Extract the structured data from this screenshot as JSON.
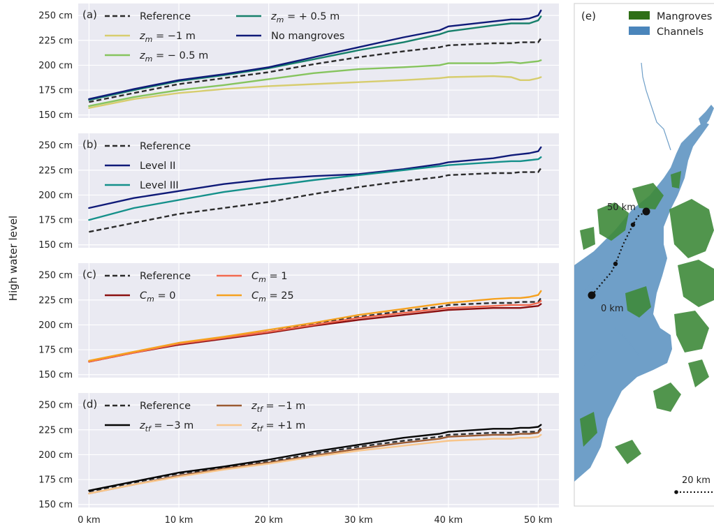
{
  "ylabel": "High water level",
  "x_ticks": [
    "0 km",
    "10 km",
    "20 km",
    "30 km",
    "40 km",
    "50 km"
  ],
  "y_ticks": [
    "150 cm",
    "175 cm",
    "200 cm",
    "225 cm",
    "250 cm"
  ],
  "chart_data": [
    {
      "type": "line",
      "panel": "(a)",
      "x": [
        0,
        5,
        10,
        15,
        20,
        25,
        30,
        35,
        39,
        40,
        45,
        47,
        48,
        49,
        50,
        50.3
      ],
      "xlim": [
        0,
        52
      ],
      "ylim": [
        148,
        260
      ],
      "grid": true,
      "series": [
        {
          "name": "Reference",
          "color": "#2b2b2b",
          "dash": true,
          "values": [
            163,
            172,
            181,
            187,
            193,
            201,
            208,
            214,
            218,
            220,
            222,
            222,
            223,
            223,
            223,
            227
          ]
        },
        {
          "name": "z_m = −1 m",
          "color": "#d7cd6e",
          "values": [
            157,
            166,
            172,
            176,
            179,
            181,
            183,
            185,
            187,
            188,
            189,
            188,
            185,
            185,
            187,
            188
          ]
        },
        {
          "name": "z_m = − 0.5 m",
          "color": "#86c45e",
          "values": [
            159,
            168,
            175,
            180,
            186,
            192,
            196,
            198,
            200,
            202,
            202,
            203,
            202,
            203,
            204,
            205
          ]
        },
        {
          "name": "z_m = + 0.5 m",
          "color": "#17806b",
          "values": [
            165,
            175,
            184,
            190,
            197,
            206,
            215,
            223,
            231,
            234,
            240,
            242,
            242,
            242,
            245,
            249
          ]
        },
        {
          "name": "No mangroves",
          "color": "#0f1a78",
          "values": [
            166,
            176,
            185,
            191,
            198,
            208,
            218,
            228,
            235,
            239,
            244,
            246,
            246,
            247,
            250,
            255
          ]
        }
      ]
    },
    {
      "type": "line",
      "panel": "(b)",
      "x": [
        0,
        5,
        10,
        15,
        20,
        25,
        30,
        35,
        39,
        40,
        45,
        47,
        48,
        49,
        50,
        50.3
      ],
      "xlim": [
        0,
        52
      ],
      "ylim": [
        148,
        260
      ],
      "grid": true,
      "series": [
        {
          "name": "Reference",
          "color": "#2b2b2b",
          "dash": true,
          "values": [
            163,
            172,
            181,
            187,
            193,
            201,
            208,
            214,
            218,
            220,
            222,
            222,
            223,
            223,
            223,
            227
          ]
        },
        {
          "name": "Level II",
          "color": "#0f1a78",
          "values": [
            187,
            197,
            204,
            211,
            216,
            219,
            221,
            226,
            231,
            233,
            237,
            240,
            241,
            242,
            244,
            248
          ]
        },
        {
          "name": "Level III",
          "color": "#14908a",
          "values": [
            175,
            187,
            195,
            203,
            209,
            215,
            220,
            225,
            229,
            230,
            233,
            234,
            234,
            235,
            236,
            238
          ]
        }
      ]
    },
    {
      "type": "line",
      "panel": "(c)",
      "x": [
        0,
        5,
        10,
        15,
        20,
        25,
        30,
        35,
        39,
        40,
        45,
        47,
        48,
        49,
        50,
        50.3
      ],
      "xlim": [
        0,
        52
      ],
      "ylim": [
        148,
        260
      ],
      "grid": true,
      "series": [
        {
          "name": "Reference",
          "color": "#2b2b2b",
          "dash": true,
          "values": [
            163,
            172,
            181,
            187,
            193,
            201,
            208,
            214,
            218,
            220,
            222,
            222,
            223,
            223,
            223,
            227
          ]
        },
        {
          "name": "C_m = 0",
          "color": "#8b1010",
          "values": [
            163,
            172,
            180,
            186,
            192,
            199,
            205,
            210,
            214,
            215,
            217,
            217,
            217,
            218,
            219,
            221
          ]
        },
        {
          "name": "C_m = 1",
          "color": "#f26a4f",
          "values": [
            163,
            172,
            181,
            187,
            193,
            200,
            207,
            212,
            216,
            217,
            219,
            220,
            220,
            220,
            222,
            224
          ]
        },
        {
          "name": "C_m = 25",
          "color": "#f5a11f",
          "values": [
            164,
            173,
            182,
            188,
            195,
            202,
            210,
            216,
            221,
            222,
            226,
            227,
            227,
            228,
            230,
            234
          ]
        }
      ]
    },
    {
      "type": "line",
      "panel": "(d)",
      "x": [
        0,
        5,
        10,
        15,
        20,
        25,
        30,
        35,
        39,
        40,
        45,
        47,
        48,
        49,
        50,
        50.3
      ],
      "xlim": [
        0,
        52
      ],
      "ylim": [
        148,
        260
      ],
      "grid": true,
      "series": [
        {
          "name": "Reference",
          "color": "#2b2b2b",
          "dash": true,
          "values": [
            163,
            172,
            181,
            187,
            193,
            201,
            208,
            214,
            218,
            220,
            222,
            222,
            223,
            223,
            223,
            227
          ]
        },
        {
          "name": "z_tf = −3 m",
          "color": "#050505",
          "values": [
            164,
            173,
            182,
            188,
            195,
            203,
            210,
            217,
            221,
            223,
            226,
            226,
            227,
            227,
            228,
            230
          ]
        },
        {
          "name": "z_tf = −1 m",
          "color": "#9a5a32",
          "values": [
            161,
            170,
            179,
            186,
            192,
            199,
            206,
            212,
            216,
            218,
            220,
            220,
            221,
            221,
            222,
            225
          ]
        },
        {
          "name": "z_tf = +1 m",
          "color": "#f8c58a",
          "values": [
            161,
            170,
            178,
            185,
            191,
            198,
            204,
            209,
            213,
            214,
            216,
            216,
            217,
            217,
            218,
            220
          ]
        }
      ]
    }
  ],
  "legends": [
    {
      "panel": "a",
      "items": [
        {
          "pre": "Reference",
          "sub": "",
          "post": ""
        },
        {
          "pre": "z",
          "sub": "m",
          "post": " = −1 m"
        },
        {
          "pre": "z",
          "sub": "m",
          "post": " = − 0.5 m"
        },
        {
          "pre": "z",
          "sub": "m",
          "post": " = + 0.5 m"
        },
        {
          "pre": "No mangroves",
          "sub": "",
          "post": ""
        }
      ]
    },
    {
      "panel": "b",
      "items": [
        {
          "pre": "Reference",
          "sub": "",
          "post": ""
        },
        {
          "pre": "Level II",
          "sub": "",
          "post": ""
        },
        {
          "pre": "Level III",
          "sub": "",
          "post": ""
        }
      ]
    },
    {
      "panel": "c",
      "items": [
        {
          "pre": "Reference",
          "sub": "",
          "post": ""
        },
        {
          "pre": "C",
          "sub": "m",
          "post": " = 0"
        },
        {
          "pre": "C",
          "sub": "m",
          "post": " = 1"
        },
        {
          "pre": "C",
          "sub": "m",
          "post": " = 25"
        }
      ]
    },
    {
      "panel": "d",
      "items": [
        {
          "pre": "Reference",
          "sub": "",
          "post": ""
        },
        {
          "pre": "z",
          "sub": "tf",
          "post": " = −3 m"
        },
        {
          "pre": "z",
          "sub": "tf",
          "post": " = −1 m"
        },
        {
          "pre": "z",
          "sub": "tf",
          "post": " = +1 m"
        }
      ]
    }
  ],
  "map": {
    "label": "(e)",
    "legend": [
      {
        "label": "Mangroves",
        "color": "#2f6f17"
      },
      {
        "label": "Channels",
        "color": "#4a85bb"
      }
    ],
    "water_color": "#6f9fc8",
    "mangrove_color": "#3e8a3a",
    "start_label": "0 km",
    "end_label": "50 km",
    "scalebar_label": "20 km"
  }
}
